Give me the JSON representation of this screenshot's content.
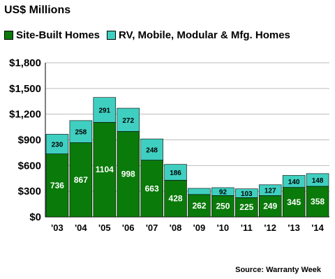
{
  "chart_data": {
    "type": "bar",
    "stacked": true,
    "title": "US$ Millions",
    "categories": [
      "'03",
      "'04",
      "'05",
      "'06",
      "'07",
      "'08",
      "'09",
      "'10",
      "'11",
      "'12",
      "'13",
      "'14"
    ],
    "series": [
      {
        "name": "Site-Built Homes",
        "color": "#0a7a0a",
        "values": [
          736,
          867,
          1104,
          998,
          663,
          428,
          262,
          250,
          225,
          249,
          345,
          358
        ]
      },
      {
        "name": "RV, Mobile, Modular & Mfg. Homes",
        "color": "#3fcfc0",
        "values": [
          230,
          258,
          291,
          272,
          248,
          186,
          72,
          92,
          103,
          127,
          140,
          148
        ]
      }
    ],
    "series_labels_shown": [
      [
        "736",
        "867",
        "1104",
        "998",
        "663",
        "428",
        "262",
        "250",
        "225",
        "249",
        "345",
        "358"
      ],
      [
        "230",
        "258",
        "291",
        "272",
        "248",
        "186",
        "",
        "92",
        "103",
        "127",
        "140",
        "148"
      ]
    ],
    "ylim": [
      0,
      1800
    ],
    "yticks": [
      0,
      300,
      600,
      900,
      1200,
      1500,
      1800
    ],
    "ytick_labels": [
      "$0",
      "$300",
      "$600",
      "$900",
      "$1,200",
      "$1,500",
      "$1,800"
    ],
    "grid": true,
    "legend_position": "top",
    "source": "Source: Warranty Week"
  }
}
